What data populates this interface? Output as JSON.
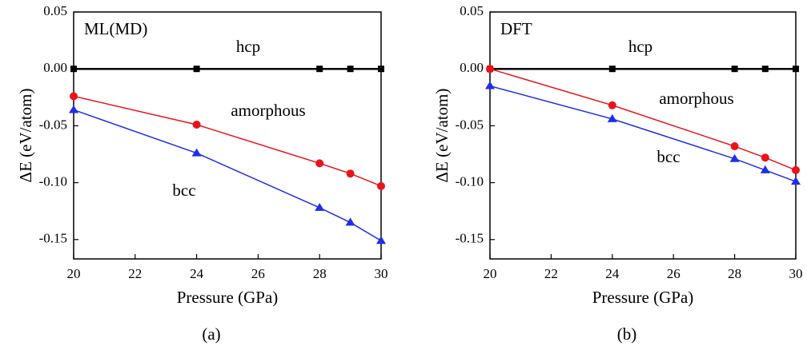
{
  "chart_data": [
    {
      "type": "line",
      "title": "ML(MD)",
      "caption": "(a)",
      "xlabel": "Pressure (GPa)",
      "ylabel": "ΔE (eV/atom)",
      "x": [
        20,
        24,
        28,
        29,
        30
      ],
      "series": [
        {
          "name": "hcp",
          "color": "#000000",
          "marker": "square",
          "values": [
            0,
            0,
            0,
            0,
            0
          ]
        },
        {
          "name": "amorphous",
          "color": "#e8141b",
          "marker": "circle",
          "values": [
            -0.024,
            -0.049,
            -0.083,
            -0.092,
            -0.103
          ]
        },
        {
          "name": "bcc",
          "color": "#1e2ee8",
          "marker": "triangle",
          "values": [
            -0.036,
            -0.074,
            -0.122,
            -0.135,
            -0.151
          ]
        }
      ],
      "xlim": [
        20,
        30
      ],
      "xticks": [
        20,
        22,
        24,
        26,
        28,
        30
      ],
      "ylim": [
        -0.167,
        0.05
      ],
      "yticks": [
        {
          "value": 0.05,
          "label": "0.05"
        },
        {
          "value": 0,
          "label": "0.00"
        },
        {
          "value": -0.05,
          "label": "-0.05"
        },
        {
          "value": -0.1,
          "label": "-0.10"
        },
        {
          "value": -0.15,
          "label": "-0.15"
        }
      ]
    },
    {
      "type": "line",
      "title": "DFT",
      "caption": "(b)",
      "xlabel": "Pressure (GPa)",
      "ylabel": "ΔE (eV/atom)",
      "x": [
        20,
        24,
        28,
        29,
        30
      ],
      "series": [
        {
          "name": "hcp",
          "color": "#000000",
          "marker": "square",
          "values": [
            0,
            0,
            0,
            0,
            0
          ]
        },
        {
          "name": "amorphous",
          "color": "#e8141b",
          "marker": "circle",
          "values": [
            0,
            -0.032,
            -0.068,
            -0.078,
            -0.089
          ]
        },
        {
          "name": "bcc",
          "color": "#1e2ee8",
          "marker": "triangle",
          "values": [
            -0.015,
            -0.044,
            -0.079,
            -0.089,
            -0.099
          ]
        }
      ],
      "xlim": [
        20,
        30
      ],
      "xticks": [
        20,
        22,
        24,
        26,
        28,
        30
      ],
      "ylim": [
        -0.167,
        0.05
      ],
      "yticks": [
        {
          "value": 0.05,
          "label": "0.05"
        },
        {
          "value": 0,
          "label": "0.00"
        },
        {
          "value": -0.05,
          "label": "-0.05"
        },
        {
          "value": -0.1,
          "label": "-0.10"
        },
        {
          "value": -0.15,
          "label": "-0.15"
        }
      ]
    }
  ]
}
